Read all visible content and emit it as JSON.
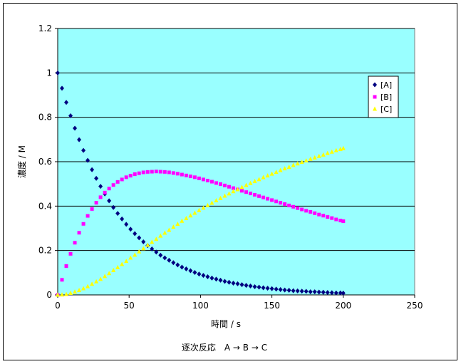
{
  "chart_data": {
    "type": "scatter",
    "title": "",
    "caption": "逐次反応　A → B → C",
    "xlabel": "時間 / s",
    "ylabel": "濃度 / M",
    "xlim": [
      0,
      250
    ],
    "ylim": [
      0,
      1.2
    ],
    "xticks": [
      0,
      50,
      100,
      150,
      200,
      250
    ],
    "yticks": [
      0,
      0.2,
      0.4,
      0.6,
      0.8,
      1,
      1.2
    ],
    "xtick_labels": [
      "0",
      "50",
      "100",
      "150",
      "200",
      "250"
    ],
    "ytick_labels": [
      "0",
      "0.2",
      "0.4",
      "0.6",
      "0.8",
      "1",
      "1.2"
    ],
    "grid": "horizontal",
    "legend_position": "right",
    "plot_background": "#99FFFF",
    "x": [
      0,
      3,
      6,
      9,
      12,
      15,
      18,
      21,
      24,
      27,
      30,
      33,
      36,
      39,
      42,
      45,
      48,
      51,
      54,
      57,
      60,
      63,
      66,
      69,
      72,
      75,
      78,
      81,
      84,
      87,
      90,
      93,
      96,
      99,
      102,
      105,
      108,
      111,
      114,
      117,
      120,
      123,
      126,
      129,
      132,
      135,
      138,
      141,
      144,
      147,
      150,
      153,
      156,
      159,
      162,
      165,
      168,
      171,
      174,
      177,
      180,
      183,
      186,
      189,
      192,
      195,
      198,
      200
    ],
    "series": [
      {
        "name": "[A]",
        "color": "#000080",
        "marker": "diamond",
        "values": [
          1.0,
          0.931,
          0.867,
          0.807,
          0.751,
          0.699,
          0.651,
          0.606,
          0.564,
          0.525,
          0.489,
          0.455,
          0.424,
          0.394,
          0.367,
          0.342,
          0.318,
          0.296,
          0.276,
          0.257,
          0.239,
          0.222,
          0.207,
          0.193,
          0.179,
          0.167,
          0.156,
          0.145,
          0.135,
          0.125,
          0.117,
          0.109,
          0.101,
          0.094,
          0.088,
          0.082,
          0.076,
          0.071,
          0.066,
          0.061,
          0.057,
          0.053,
          0.05,
          0.046,
          0.043,
          0.04,
          0.037,
          0.035,
          0.032,
          0.03,
          0.028,
          0.026,
          0.024,
          0.022,
          0.021,
          0.019,
          0.018,
          0.017,
          0.016,
          0.014,
          0.014,
          0.013,
          0.012,
          0.011,
          0.01,
          0.009,
          0.009,
          0.008
        ]
      },
      {
        "name": "[B]",
        "color": "#FF00FF",
        "marker": "square",
        "values": [
          0.0,
          0.068,
          0.13,
          0.185,
          0.235,
          0.28,
          0.32,
          0.356,
          0.387,
          0.415,
          0.44,
          0.461,
          0.479,
          0.495,
          0.509,
          0.52,
          0.53,
          0.537,
          0.544,
          0.548,
          0.552,
          0.554,
          0.555,
          0.556,
          0.555,
          0.554,
          0.552,
          0.549,
          0.546,
          0.542,
          0.538,
          0.534,
          0.53,
          0.525,
          0.52,
          0.515,
          0.51,
          0.504,
          0.499,
          0.493,
          0.487,
          0.481,
          0.475,
          0.469,
          0.463,
          0.457,
          0.451,
          0.445,
          0.439,
          0.433,
          0.427,
          0.421,
          0.415,
          0.409,
          0.403,
          0.397,
          0.391,
          0.385,
          0.379,
          0.374,
          0.368,
          0.362,
          0.357,
          0.351,
          0.346,
          0.34,
          0.335,
          0.332
        ]
      },
      {
        "name": "[C]",
        "color": "#FFFF00",
        "marker": "triangle",
        "values": [
          0.0,
          0.001,
          0.003,
          0.008,
          0.014,
          0.021,
          0.029,
          0.038,
          0.049,
          0.06,
          0.071,
          0.084,
          0.097,
          0.111,
          0.124,
          0.138,
          0.152,
          0.167,
          0.18,
          0.195,
          0.209,
          0.224,
          0.238,
          0.251,
          0.266,
          0.279,
          0.292,
          0.306,
          0.319,
          0.333,
          0.345,
          0.357,
          0.369,
          0.381,
          0.392,
          0.403,
          0.414,
          0.425,
          0.435,
          0.446,
          0.456,
          0.466,
          0.475,
          0.485,
          0.494,
          0.503,
          0.512,
          0.52,
          0.529,
          0.537,
          0.545,
          0.553,
          0.561,
          0.569,
          0.576,
          0.584,
          0.591,
          0.598,
          0.605,
          0.612,
          0.618,
          0.625,
          0.631,
          0.638,
          0.644,
          0.651,
          0.656,
          0.66
        ]
      }
    ]
  }
}
